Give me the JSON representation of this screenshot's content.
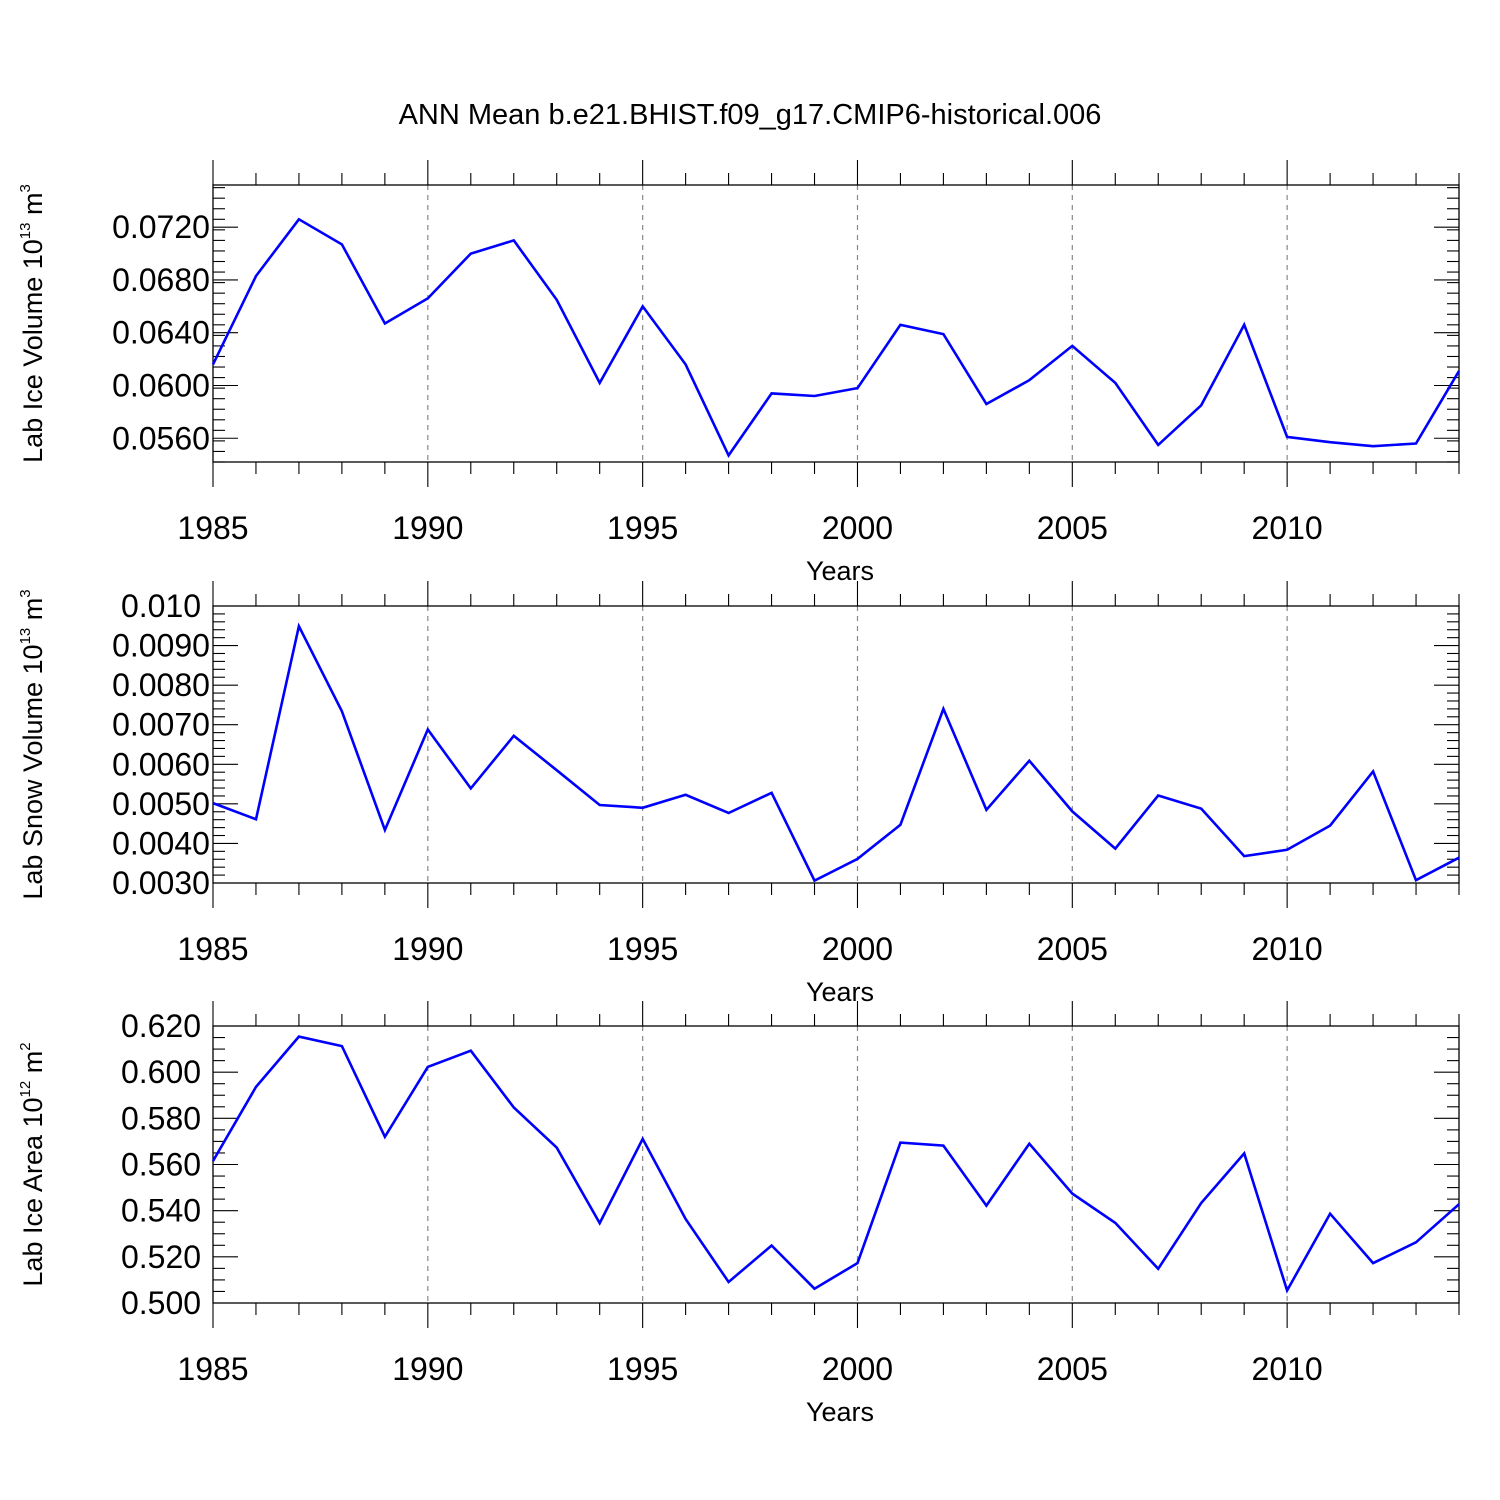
{
  "title": "ANN Mean b.e21.BHIST.f09_g17.CMIP6-historical.006",
  "chart_data": [
    {
      "type": "line",
      "title": "ANN Mean b.e21.BHIST.f09_g17.CMIP6-historical.006",
      "xlabel": "Years",
      "ylabel": {
        "text": "Lab Ice Volume 10",
        "exponent": "13",
        "unit": "m",
        "unit_exponent": "3"
      },
      "xlim": [
        1985,
        2014
      ],
      "ylim": [
        0.0542,
        0.0752
      ],
      "xticks": [
        1985,
        1990,
        1995,
        2000,
        2005,
        2010
      ],
      "xtick_labels": [
        "1985",
        "1990",
        "1995",
        "2000",
        "2005",
        "2010"
      ],
      "yticks": [
        0.056,
        0.06,
        0.064,
        0.068,
        0.072
      ],
      "ytick_labels": [
        "0.0560",
        "0.0600",
        "0.0640",
        "0.0680",
        "0.0720"
      ],
      "x_grid_years": [
        1990,
        1995,
        2000,
        2005,
        2010
      ],
      "x": [
        1985,
        1986,
        1987,
        1988,
        1989,
        1990,
        1991,
        1992,
        1993,
        1994,
        1995,
        1996,
        1997,
        1998,
        1999,
        2000,
        2001,
        2002,
        2003,
        2004,
        2005,
        2006,
        2007,
        2008,
        2009,
        2010,
        2011,
        2012,
        2013,
        2014
      ],
      "series": [
        {
          "name": "Lab Ice Volume",
          "color": "#0000ff",
          "values": [
            0.0616,
            0.0683,
            0.0726,
            0.0707,
            0.0647,
            0.0666,
            0.07,
            0.071,
            0.0665,
            0.0602,
            0.066,
            0.0616,
            0.0547,
            0.0594,
            0.0592,
            0.0598,
            0.0646,
            0.0639,
            0.0586,
            0.0604,
            0.063,
            0.0602,
            0.0555,
            0.0585,
            0.0646,
            0.0561,
            0.0557,
            0.0554,
            0.0556,
            0.0611
          ]
        }
      ]
    },
    {
      "type": "line",
      "xlabel": "Years",
      "ylabel": {
        "text": "Lab Snow Volume 10",
        "exponent": "13",
        "unit": "m",
        "unit_exponent": "3"
      },
      "xlim": [
        1985,
        2014
      ],
      "ylim": [
        0.003,
        0.01
      ],
      "xticks": [
        1985,
        1990,
        1995,
        2000,
        2005,
        2010
      ],
      "xtick_labels": [
        "1985",
        "1990",
        "1995",
        "2000",
        "2005",
        "2010"
      ],
      "yticks": [
        0.003,
        0.004,
        0.005,
        0.006,
        0.007,
        0.008,
        0.009,
        0.01
      ],
      "ytick_labels": [
        "0.0030",
        "0.0040",
        "0.0050",
        "0.0060",
        "0.0070",
        "0.0080",
        "0.0090",
        "0.010"
      ],
      "x_grid_years": [
        1990,
        1995,
        2000,
        2005,
        2010
      ],
      "x": [
        1985,
        1986,
        1987,
        1988,
        1989,
        1990,
        1991,
        1992,
        1993,
        1994,
        1995,
        1996,
        1997,
        1998,
        1999,
        2000,
        2001,
        2002,
        2003,
        2004,
        2005,
        2006,
        2007,
        2008,
        2009,
        2010,
        2011,
        2012,
        2013,
        2014
      ],
      "series": [
        {
          "name": "Lab Snow Volume",
          "color": "#0000ff",
          "values": [
            0.00502,
            0.00461,
            0.00949,
            0.00734,
            0.00434,
            0.00688,
            0.00539,
            0.00672,
            0.00585,
            0.00497,
            0.0049,
            0.00523,
            0.00477,
            0.00528,
            0.00306,
            0.00361,
            0.00447,
            0.0074,
            0.00485,
            0.00609,
            0.00481,
            0.00387,
            0.00521,
            0.00488,
            0.00368,
            0.00384,
            0.00445,
            0.00582,
            0.00307,
            0.00364
          ]
        }
      ]
    },
    {
      "type": "line",
      "xlabel": "Years",
      "ylabel": {
        "text": "Lab Ice Area 10",
        "exponent": "12",
        "unit": "m",
        "unit_exponent": "2"
      },
      "xlim": [
        1985,
        2014
      ],
      "ylim": [
        0.5,
        0.62
      ],
      "xticks": [
        1985,
        1990,
        1995,
        2000,
        2005,
        2010
      ],
      "xtick_labels": [
        "1985",
        "1990",
        "1995",
        "2000",
        "2005",
        "2010"
      ],
      "yticks": [
        0.5,
        0.52,
        0.54,
        0.56,
        0.58,
        0.6,
        0.62
      ],
      "ytick_labels": [
        "0.500",
        "0.520",
        "0.540",
        "0.560",
        "0.580",
        "0.600",
        "0.620"
      ],
      "x_grid_years": [
        1990,
        1995,
        2000,
        2005,
        2010
      ],
      "x": [
        1985,
        1986,
        1987,
        1988,
        1989,
        1990,
        1991,
        1992,
        1993,
        1994,
        1995,
        1996,
        1997,
        1998,
        1999,
        2000,
        2001,
        2002,
        2003,
        2004,
        2005,
        2006,
        2007,
        2008,
        2009,
        2010,
        2011,
        2012,
        2013,
        2014
      ],
      "series": [
        {
          "name": "Lab Ice Area",
          "color": "#0000ff",
          "values": [
            0.5615,
            0.5936,
            0.6154,
            0.6113,
            0.572,
            0.6023,
            0.6093,
            0.5847,
            0.5673,
            0.5346,
            0.5711,
            0.5364,
            0.5091,
            0.5249,
            0.5062,
            0.5173,
            0.5695,
            0.5682,
            0.5422,
            0.569,
            0.5474,
            0.5347,
            0.5148,
            0.5433,
            0.5648,
            0.5054,
            0.5387,
            0.5173,
            0.5263,
            0.5428
          ]
        }
      ]
    }
  ]
}
